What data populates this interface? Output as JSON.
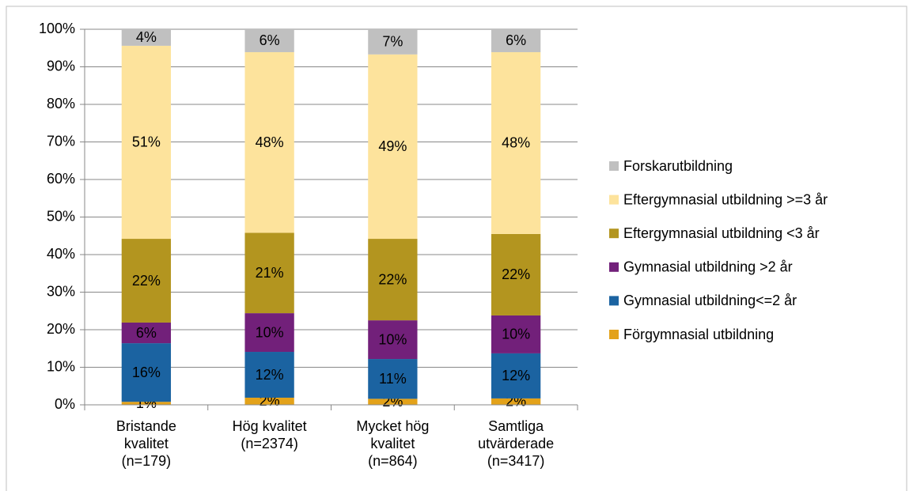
{
  "chart_data": {
    "type": "stacked_bar",
    "categories": [
      "Bristande\nkvalitet\n(n=179)",
      "Hög kvalitet\n(n=2374)",
      "Mycket hög\nkvalitet\n(n=864)",
      "Samtliga\nutvärderade\n(n=3417)"
    ],
    "series": [
      {
        "name": "Förgymnasial utbildning",
        "color": "#e3a21a",
        "values": [
          0.8,
          1.9,
          1.6,
          1.7
        ],
        "value_labels": [
          "1%",
          "2%",
          "2%",
          "2%"
        ]
      },
      {
        "name": "Gymnasial utbildning<=2 år",
        "color": "#1b63a1",
        "values": [
          15.6,
          12.2,
          10.6,
          12.0
        ],
        "value_labels": [
          "16%",
          "12%",
          "11%",
          "12%"
        ]
      },
      {
        "name": "Gymnasial utbildning >2 år",
        "color": "#72207a",
        "values": [
          5.5,
          10.3,
          10.3,
          10.1
        ],
        "value_labels": [
          "6%",
          "10%",
          "10%",
          "10%"
        ]
      },
      {
        "name": "Eftergymnasial utbildning <3 år",
        "color": "#b3951f",
        "values": [
          22.3,
          21.4,
          21.7,
          21.7
        ],
        "value_labels": [
          "22%",
          "21%",
          "22%",
          "22%"
        ]
      },
      {
        "name": "Eftergymnasial utbildning >=3 år",
        "color": "#fde39c",
        "values": [
          51.4,
          48.1,
          49.1,
          48.4
        ],
        "value_labels": [
          "51%",
          "48%",
          "49%",
          "48%"
        ]
      },
      {
        "name": "Forskarutbildning",
        "color": "#c0c0c0",
        "values": [
          4.4,
          6.1,
          6.7,
          6.1
        ],
        "value_labels": [
          "4%",
          "6%",
          "7%",
          "6%"
        ]
      }
    ],
    "ylim": [
      0,
      100
    ],
    "yticks": [
      {
        "value": 0,
        "label": "0%"
      },
      {
        "value": 10,
        "label": "10%"
      },
      {
        "value": 20,
        "label": "20%"
      },
      {
        "value": 30,
        "label": "30%"
      },
      {
        "value": 40,
        "label": "40%"
      },
      {
        "value": 50,
        "label": "50%"
      },
      {
        "value": 60,
        "label": "60%"
      },
      {
        "value": 70,
        "label": "70%"
      },
      {
        "value": 80,
        "label": "80%"
      },
      {
        "value": 90,
        "label": "90%"
      },
      {
        "value": 100,
        "label": "100%"
      }
    ],
    "grid": true,
    "legend": "right"
  }
}
